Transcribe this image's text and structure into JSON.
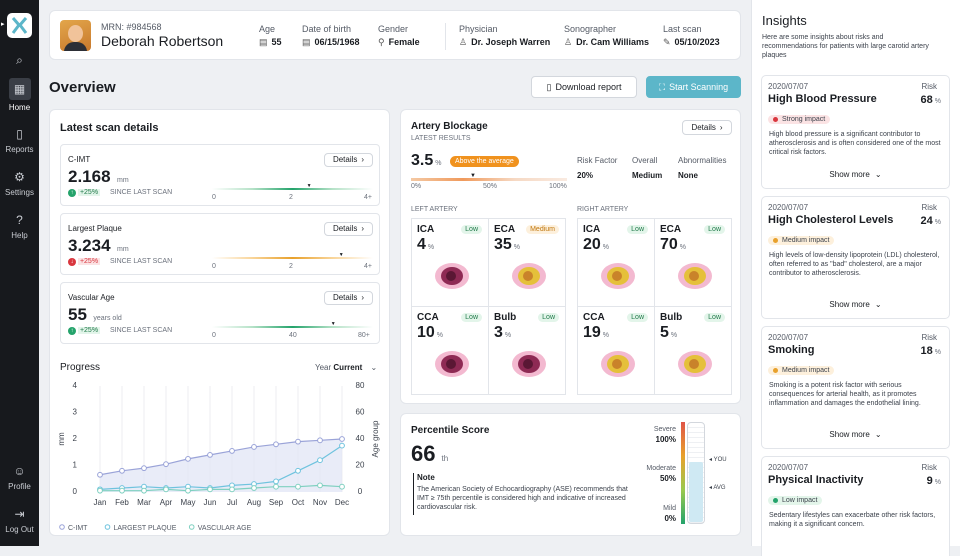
{
  "sidebar": {
    "items": [
      {
        "label": "Home",
        "icon": "home-icon"
      },
      {
        "label": "Reports",
        "icon": "reports-icon"
      },
      {
        "label": "Settings",
        "icon": "settings-icon"
      },
      {
        "label": "Help",
        "icon": "help-icon"
      },
      {
        "label": "Profile",
        "icon": "profile-icon"
      },
      {
        "label": "Log Out",
        "icon": "logout-icon"
      }
    ]
  },
  "patient": {
    "mrn": "MRN: #984568",
    "name": "Deborah Robertson",
    "age_label": "Age",
    "age": "55",
    "dob_label": "Date of birth",
    "dob": "06/15/1968",
    "gender_label": "Gender",
    "gender": "Female",
    "physician_label": "Physician",
    "physician": "Dr. Joseph Warren",
    "sonographer_label": "Sonographer",
    "sonographer": "Dr. Cam Williams",
    "lastscan_label": "Last scan",
    "lastscan": "05/10/2023"
  },
  "overview": {
    "title": "Overview",
    "download": "Download report",
    "start": "Start Scanning"
  },
  "latest": {
    "title": "Latest scan details",
    "details": "Details",
    "items": [
      {
        "name": "C-IMT",
        "value": "2.168",
        "unit": "mm",
        "change": "+25%",
        "since": "SINCE LAST SCAN",
        "ticks": [
          "0",
          "2",
          "4+"
        ],
        "direction": "up",
        "marker": 0.6
      },
      {
        "name": "Largest Plaque",
        "value": "3.234",
        "unit": "mm",
        "change": "+25%",
        "since": "SINCE LAST SCAN",
        "ticks": [
          "0",
          "2",
          "4+"
        ],
        "direction": "down",
        "marker": 0.8
      },
      {
        "name": "Vascular Age",
        "value": "55",
        "unit": "years old",
        "change": "+25%",
        "since": "SINCE LAST SCAN",
        "ticks": [
          "0",
          "40",
          "80+"
        ],
        "direction": "up",
        "marker": 0.75
      }
    ]
  },
  "progress": {
    "title": "Progress",
    "period_label": "Year",
    "period": "Current",
    "chart_data": {
      "type": "line",
      "categories": [
        "Jan",
        "Feb",
        "Mar",
        "Apr",
        "May",
        "Jun",
        "Jul",
        "Aug",
        "Sep",
        "Oct",
        "Nov",
        "Dec"
      ],
      "ylabel": "mm",
      "y2label": "Age group",
      "ylim": [
        0,
        4
      ],
      "y2lim": [
        0,
        80
      ],
      "yticks": [
        "0",
        "1",
        "2",
        "3",
        "4"
      ],
      "y2ticks": [
        "0",
        "20",
        "40",
        "60",
        "80"
      ],
      "series": [
        {
          "name": "C-IMT",
          "axis": "right",
          "values": [
            13,
            16,
            18,
            21,
            25,
            28,
            31,
            34,
            36,
            38,
            39,
            40
          ],
          "color": "#9aa3d8"
        },
        {
          "name": "LARGEST PLAQUE",
          "axis": "left",
          "values": [
            0.1,
            0.15,
            0.2,
            0.15,
            0.2,
            0.15,
            0.25,
            0.3,
            0.4,
            0.8,
            1.2,
            1.75
          ],
          "color": "#6fc3de"
        },
        {
          "name": "VASCULAR AGE",
          "axis": "left",
          "values": [
            0.05,
            0.05,
            0.05,
            0.1,
            0.05,
            0.1,
            0.1,
            0.15,
            0.2,
            0.2,
            0.25,
            0.2
          ],
          "color": "#7fd0c0"
        }
      ]
    }
  },
  "artery": {
    "title": "Artery Blockage",
    "subtitle": "LATEST RESULTS",
    "details": "Details",
    "value": "3.5",
    "unit": "%",
    "badge": "Above the average",
    "ticks": [
      "0%",
      "50%",
      "100%"
    ],
    "risk_factor_label": "Risk Factor",
    "risk_factor": "20%",
    "overall_label": "Overall",
    "overall": "Medium",
    "abn_label": "Abnormalities",
    "abn": "None",
    "left_label": "LEFT ARTERY",
    "right_label": "RIGHT ARTERY",
    "left": [
      {
        "name": "ICA",
        "value": "4",
        "level": "Low"
      },
      {
        "name": "ECA",
        "value": "35",
        "level": "Medium"
      },
      {
        "name": "CCA",
        "value": "10",
        "level": "Low"
      },
      {
        "name": "Bulb",
        "value": "3",
        "level": "Low"
      }
    ],
    "right": [
      {
        "name": "ICA",
        "value": "20",
        "level": "Low"
      },
      {
        "name": "ECA",
        "value": "70",
        "level": "Low"
      },
      {
        "name": "CCA",
        "value": "19",
        "level": "Low"
      },
      {
        "name": "Bulb",
        "value": "5",
        "level": "Low"
      }
    ],
    "pct": "%"
  },
  "percentile": {
    "title": "Percentile Score",
    "value": "66",
    "suffix": "th",
    "note_title": "Note",
    "note": "The American Society of Echocardiography (ASE) recommends that IMT ≥ 75th percentile is considered high and indicative of increased cardiovascular risk.",
    "severe_label": "Severe",
    "severe": "100%",
    "moderate_label": "Moderate",
    "moderate": "50%",
    "mild_label": "Mild",
    "mild": "0%",
    "you": "◂ YOU",
    "avg": "◂ AVG"
  },
  "insights": {
    "title": "Insights",
    "subtitle": "Here are some insights about risks and recommendations for patients with large carotid artery plaques",
    "risk_label": "Risk",
    "more": "Show more",
    "items": [
      {
        "date": "2020/07/07",
        "title": "High Blood Pressure",
        "risk": "68",
        "impact": "Strong impact",
        "body": "High blood pressure is a significant contributor to atherosclerosis and is often considered one of the most critical risk factors."
      },
      {
        "date": "2020/07/07",
        "title": "High Cholesterol Levels",
        "risk": "24",
        "impact": "Medium impact",
        "body": "High levels of low-density lipoprotein (LDL) cholesterol, often referred to as \"bad\" cholesterol, are a major contributor to atherosclerosis."
      },
      {
        "date": "2020/07/07",
        "title": "Smoking",
        "risk": "18",
        "impact": "Medium impact",
        "body": "Smoking is a potent risk factor with serious consequences for arterial health, as it promotes inflammation and damages the endothelial lining."
      },
      {
        "date": "2020/07/07",
        "title": "Physical Inactivity",
        "risk": "9",
        "impact": "Low impact",
        "body": "Sedentary lifestyles can exacerbate other risk factors, making it a significant concern."
      }
    ]
  },
  "colors": {
    "accent": "#5cb6c9",
    "strong": "#d9363e",
    "medium": "#e8a12c",
    "low": "#24a36b"
  }
}
